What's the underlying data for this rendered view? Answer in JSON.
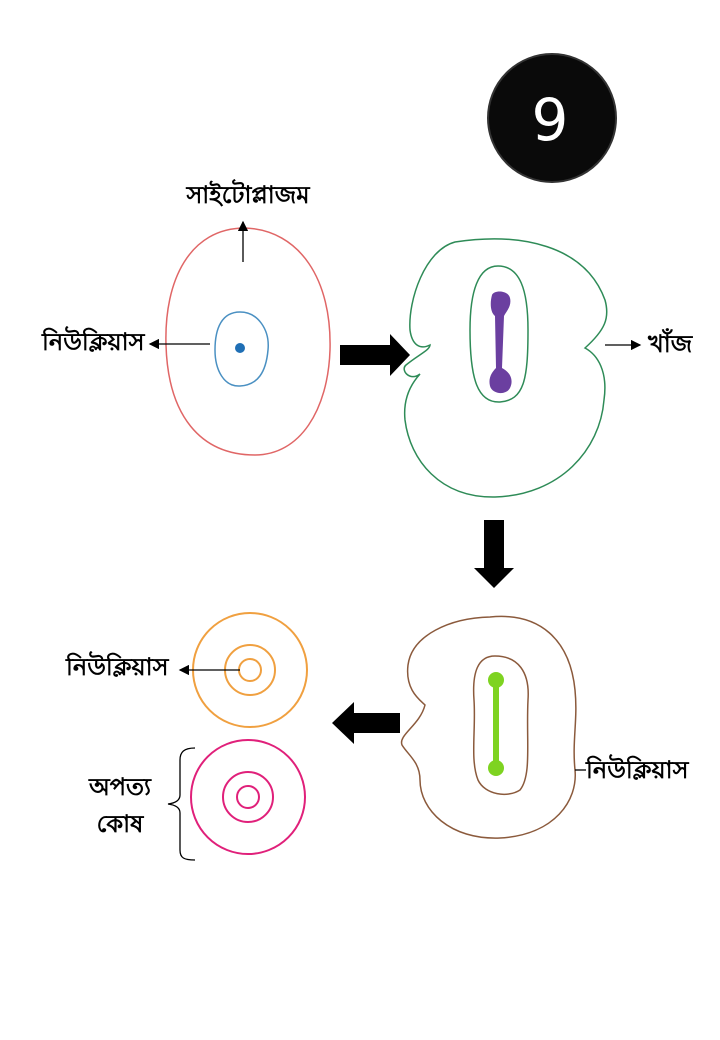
{
  "badge": {
    "number": "9"
  },
  "labels": {
    "cytoplasm": "সাইটোপ্লাজম",
    "nucleus_top": "নিউক্লিয়াস",
    "groove": "খাঁজ",
    "nucleus_bottom_left": "নিউক্লিয়াস",
    "nucleus_bottom_right": "নিউক্লিয়াস",
    "daughter_cell_line1": "অপত্য",
    "daughter_cell_line2": "কোষ"
  },
  "colors": {
    "cell1_membrane": "#e06666",
    "cell1_nucleus": "#4a90c2",
    "nucleolus_dot": "#1f6fb5",
    "cell2_membrane": "#2e8b57",
    "chromatin_purple": "#6b3fa0",
    "cell3_membrane": "#8b5a3c",
    "chromatin_green": "#7ed321",
    "daughter_top": "#f0a040",
    "daughter_bottom": "#e0207a",
    "arrow": "#000000"
  }
}
